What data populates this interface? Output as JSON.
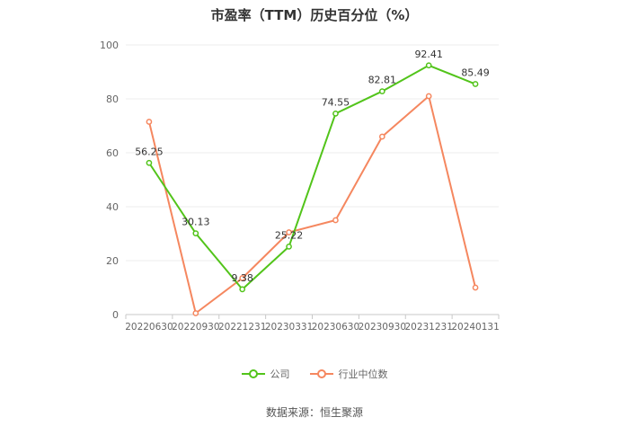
{
  "chart_data": {
    "type": "line",
    "title": "市盈率（TTM）历史百分位（%）",
    "categories": [
      "20220630",
      "20220930",
      "20221231",
      "20230331",
      "20230630",
      "20230930",
      "20231231",
      "20240131"
    ],
    "ylim": [
      0,
      100
    ],
    "yticks": [
      0,
      20,
      40,
      60,
      80,
      100
    ],
    "grid": true,
    "legend_position": "bottom",
    "series": [
      {
        "name": "公司",
        "color": "#52c41a",
        "values": [
          56.25,
          30.13,
          9.38,
          25.22,
          74.55,
          82.81,
          92.41,
          85.49
        ],
        "labels": [
          "56.25",
          "30.13",
          "9.38",
          "25.22",
          "74.55",
          "82.81",
          "92.41",
          "85.49"
        ]
      },
      {
        "name": "行业中位数",
        "color": "#f5875f",
        "values": [
          71.5,
          0.5,
          13.5,
          30.5,
          35.0,
          66.0,
          81.0,
          10.0
        ]
      }
    ]
  },
  "source": "数据来源：恒生聚源"
}
